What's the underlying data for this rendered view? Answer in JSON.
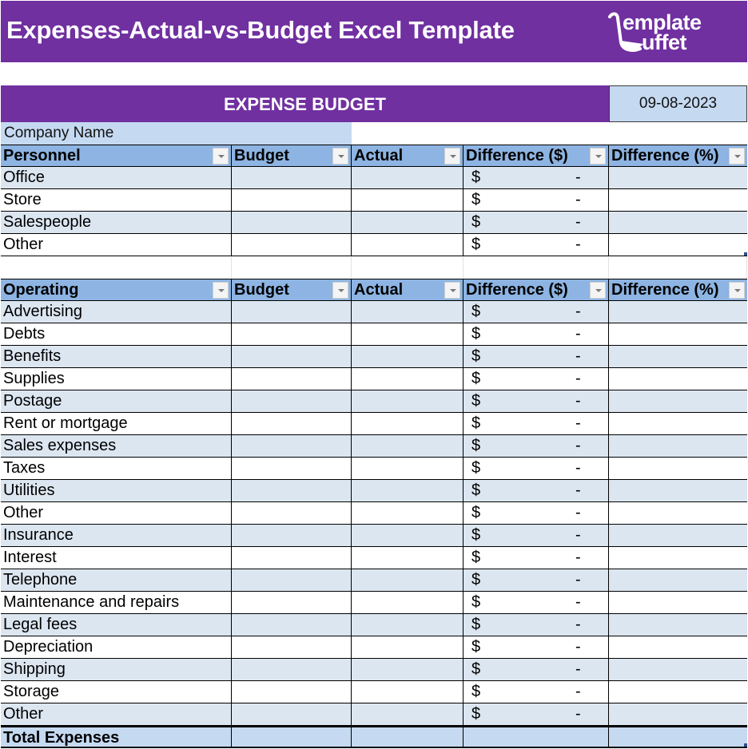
{
  "header": {
    "title": "Expenses-Actual-vs-Budget Excel Template",
    "logo_line1": "emplate",
    "logo_line2": "uffet",
    "brand_color": "#7030a0"
  },
  "budget": {
    "title": "EXPENSE BUDGET",
    "date": "09-08-2023",
    "company_label": "Company Name"
  },
  "personnel": {
    "columns": [
      "Personnel",
      "Budget",
      "Actual",
      "Difference ($)",
      "Difference (%)"
    ],
    "rows": [
      {
        "label": "Office",
        "budget": "",
        "actual": "",
        "diff_symbol": "$",
        "diff_value": "-",
        "diff_pct": ""
      },
      {
        "label": "Store",
        "budget": "",
        "actual": "",
        "diff_symbol": "$",
        "diff_value": "-",
        "diff_pct": ""
      },
      {
        "label": "Salespeople",
        "budget": "",
        "actual": "",
        "diff_symbol": "$",
        "diff_value": "-",
        "diff_pct": ""
      },
      {
        "label": "Other",
        "budget": "",
        "actual": "",
        "diff_symbol": "$",
        "diff_value": "-",
        "diff_pct": ""
      }
    ]
  },
  "operating": {
    "columns": [
      "Operating",
      "Budget",
      "Actual",
      "Difference ($)",
      "Difference (%)"
    ],
    "rows": [
      {
        "label": "Advertising",
        "diff_symbol": "$",
        "diff_value": "-"
      },
      {
        "label": "Debts",
        "diff_symbol": "$",
        "diff_value": "-"
      },
      {
        "label": "Benefits",
        "diff_symbol": "$",
        "diff_value": "-"
      },
      {
        "label": "Supplies",
        "diff_symbol": "$",
        "diff_value": "-"
      },
      {
        "label": "Postage",
        "diff_symbol": "$",
        "diff_value": "-"
      },
      {
        "label": "Rent or mortgage",
        "diff_symbol": "$",
        "diff_value": "-"
      },
      {
        "label": "Sales expenses",
        "diff_symbol": "$",
        "diff_value": "-"
      },
      {
        "label": "Taxes",
        "diff_symbol": "$",
        "diff_value": "-"
      },
      {
        "label": "Utilities",
        "diff_symbol": "$",
        "diff_value": "-"
      },
      {
        "label": "Other",
        "diff_symbol": "$",
        "diff_value": "-"
      },
      {
        "label": "Insurance",
        "diff_symbol": "$",
        "diff_value": "-"
      },
      {
        "label": "Interest",
        "diff_symbol": "$",
        "diff_value": "-"
      },
      {
        "label": "Telephone",
        "diff_symbol": "$",
        "diff_value": "-"
      },
      {
        "label": "Maintenance and repairs",
        "diff_symbol": "$",
        "diff_value": "-"
      },
      {
        "label": "Legal fees",
        "diff_symbol": "$",
        "diff_value": "-"
      },
      {
        "label": "Depreciation",
        "diff_symbol": "$",
        "diff_value": "-"
      },
      {
        "label": "Shipping",
        "diff_symbol": "$",
        "diff_value": "-"
      },
      {
        "label": "Storage",
        "diff_symbol": "$",
        "diff_value": "-"
      },
      {
        "label": "Other",
        "diff_symbol": "$",
        "diff_value": "-"
      }
    ]
  },
  "total": {
    "label": "Total Expenses"
  }
}
